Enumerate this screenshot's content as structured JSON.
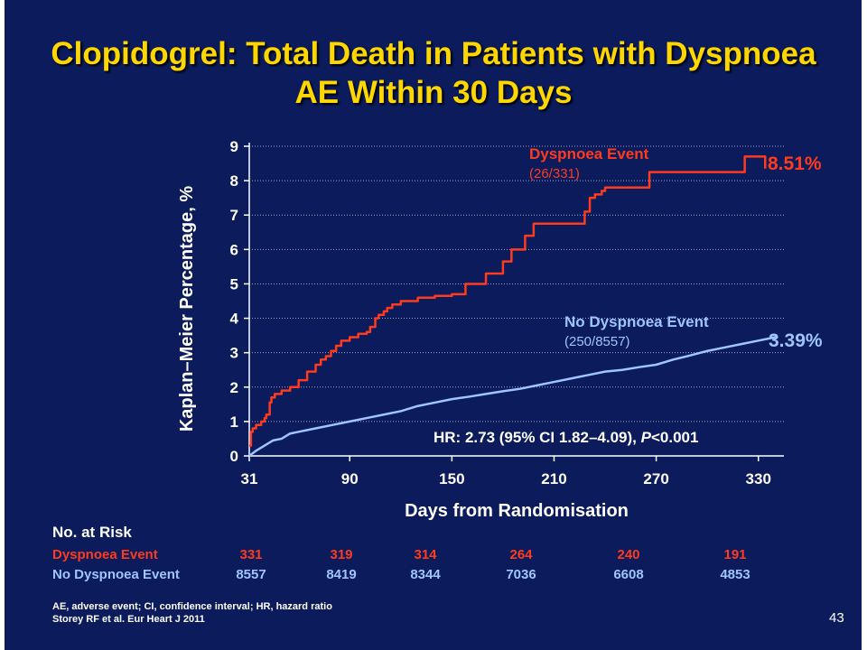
{
  "slide": {
    "title": "Clopidogrel: Total Death in Patients with Dyspnoea AE Within 30 Days",
    "page_number": "43",
    "footnote_abbrev": "AE, adverse event; CI, confidence interval; HR, hazard ratio",
    "footnote_ref": "Storey RF et al. Eur Heart J 2011"
  },
  "chart_data": {
    "type": "line",
    "xlabel": "Days from Randomisation",
    "ylabel": "Kaplan–Meier Percentage, %",
    "xlim": [
      31,
      345
    ],
    "ylim": [
      0,
      9
    ],
    "x_ticks": [
      "31",
      "90",
      "150",
      "210",
      "270",
      "330"
    ],
    "y_ticks": [
      "0",
      "1",
      "2",
      "3",
      "4",
      "5",
      "6",
      "7",
      "8",
      "9"
    ],
    "grid": true,
    "annotation_hr_prefix": "HR: 2.73 (95% CI 1.82–4.09), ",
    "annotation_hr_p": "P",
    "annotation_hr_suffix": "<0.001",
    "series": [
      {
        "name": "Dyspnoea Event",
        "counts": "(26/331)",
        "final_label": "8.51%",
        "color": "#ff3b1e",
        "step": true,
        "x": [
          31,
          32,
          33,
          35,
          38,
          40,
          41,
          43,
          44,
          46,
          50,
          55,
          60,
          65,
          70,
          73,
          76,
          79,
          82,
          85,
          90,
          95,
          100,
          102,
          105,
          107,
          110,
          112,
          115,
          120,
          130,
          140,
          150,
          158,
          160,
          163,
          170,
          173,
          180,
          183,
          185,
          190,
          193,
          196,
          198,
          204,
          208,
          212,
          220,
          228,
          231,
          234,
          238,
          240,
          244,
          248,
          260,
          263,
          266,
          300,
          320,
          322,
          330
        ],
        "y": [
          0.3,
          0.7,
          0.8,
          0.9,
          1.0,
          1.1,
          1.2,
          1.55,
          1.7,
          1.8,
          1.9,
          2.0,
          2.2,
          2.45,
          2.65,
          2.8,
          2.9,
          3.05,
          3.2,
          3.35,
          3.45,
          3.55,
          3.6,
          3.75,
          4.0,
          4.1,
          4.2,
          4.3,
          4.4,
          4.5,
          4.6,
          4.65,
          4.7,
          5.0,
          5.0,
          5.0,
          5.3,
          5.3,
          5.65,
          5.65,
          6.0,
          6.0,
          6.4,
          6.4,
          6.75,
          6.75,
          6.75,
          6.75,
          6.75,
          7.1,
          7.5,
          7.6,
          7.7,
          7.8,
          7.8,
          7.8,
          7.8,
          7.8,
          8.25,
          8.25,
          8.25,
          8.7,
          8.7
        ]
      },
      {
        "name": "No Dyspnoea Event",
        "counts": "(250/8557)",
        "final_label": "3.39%",
        "color": "#9ec5ff",
        "step": false,
        "x": [
          31,
          35,
          40,
          45,
          50,
          55,
          60,
          70,
          80,
          90,
          100,
          110,
          120,
          130,
          140,
          150,
          160,
          170,
          180,
          190,
          200,
          210,
          220,
          230,
          240,
          250,
          260,
          270,
          280,
          290,
          300,
          310,
          320,
          330,
          340
        ],
        "y": [
          0.0,
          0.15,
          0.3,
          0.45,
          0.5,
          0.65,
          0.7,
          0.8,
          0.9,
          1.0,
          1.1,
          1.2,
          1.3,
          1.45,
          1.55,
          1.65,
          1.72,
          1.8,
          1.88,
          1.95,
          2.05,
          2.15,
          2.25,
          2.35,
          2.45,
          2.5,
          2.58,
          2.65,
          2.8,
          2.92,
          3.05,
          3.15,
          3.25,
          3.35,
          3.45
        ]
      }
    ]
  },
  "at_risk": {
    "title": "No. at Risk",
    "rows": [
      {
        "label": "Dyspnoea Event",
        "values": [
          "331",
          "319",
          "314",
          "264",
          "240",
          "191"
        ]
      },
      {
        "label": "No Dyspnoea Event",
        "values": [
          "8557",
          "8419",
          "8344",
          "7036",
          "6608",
          "4853"
        ]
      }
    ]
  }
}
